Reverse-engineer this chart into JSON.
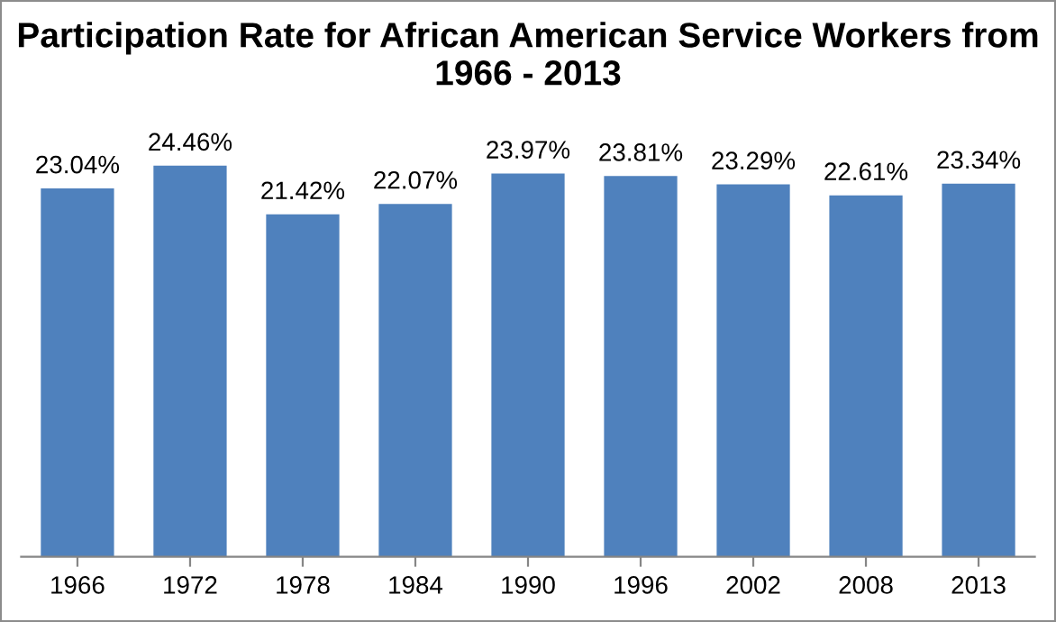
{
  "chart_data": {
    "type": "bar",
    "title": "Participation Rate for African American Service Workers from 1966 - 2013",
    "categories": [
      "1966",
      "1972",
      "1978",
      "1984",
      "1990",
      "1996",
      "2002",
      "2008",
      "2013"
    ],
    "values": [
      23.04,
      24.46,
      21.42,
      22.07,
      23.97,
      23.81,
      23.29,
      22.61,
      23.34
    ],
    "value_labels": [
      "23.04%",
      "24.46%",
      "21.42%",
      "22.07%",
      "23.97%",
      "23.81%",
      "23.29%",
      "22.61%",
      "23.34%"
    ],
    "color": "#4f81bd",
    "tick_labels": "x",
    "grid": false,
    "legend": false
  }
}
